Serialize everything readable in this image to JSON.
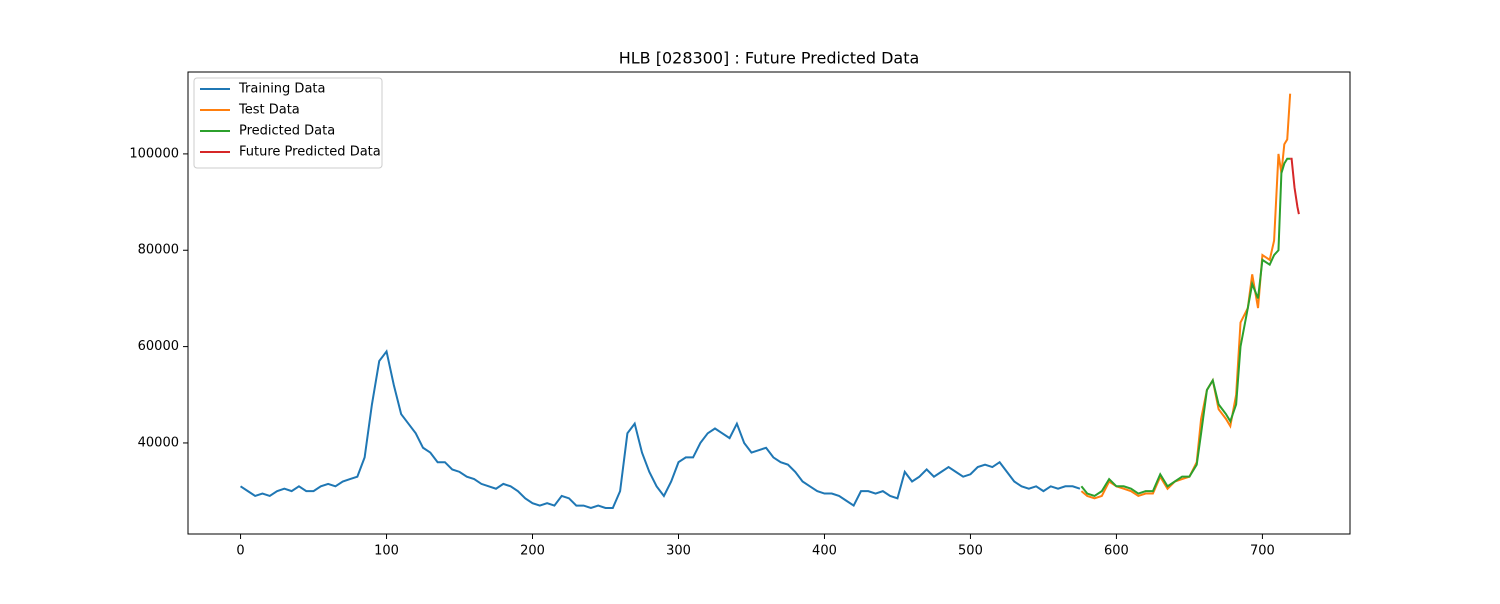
{
  "chart_data": {
    "type": "line",
    "title": "HLB [028300] : Future Predicted Data",
    "xlim": [
      -36,
      760
    ],
    "ylim": [
      21100,
      117000
    ],
    "xticks": [
      0,
      100,
      200,
      300,
      400,
      500,
      600,
      700
    ],
    "yticks": [
      40000,
      60000,
      80000,
      100000
    ],
    "legend": "upper left",
    "series": [
      {
        "name": "Training Data",
        "color": "#1f77b4",
        "x": [
          0,
          5,
          10,
          15,
          20,
          25,
          30,
          35,
          40,
          45,
          50,
          55,
          60,
          65,
          70,
          75,
          80,
          85,
          90,
          95,
          100,
          105,
          110,
          115,
          120,
          125,
          130,
          135,
          140,
          145,
          150,
          155,
          160,
          165,
          170,
          175,
          180,
          185,
          190,
          195,
          200,
          205,
          210,
          215,
          220,
          225,
          230,
          235,
          240,
          245,
          250,
          255,
          260,
          265,
          270,
          275,
          280,
          285,
          290,
          295,
          300,
          305,
          310,
          315,
          320,
          325,
          330,
          335,
          340,
          345,
          350,
          355,
          360,
          365,
          370,
          375,
          380,
          385,
          390,
          395,
          400,
          405,
          410,
          415,
          420,
          425,
          430,
          435,
          440,
          445,
          450,
          455,
          460,
          465,
          470,
          475,
          480,
          485,
          490,
          495,
          500,
          505,
          510,
          515,
          520,
          525,
          530,
          535,
          540,
          545,
          550,
          555,
          560,
          565,
          570,
          575
        ],
        "values": [
          31000,
          30000,
          29000,
          29500,
          29000,
          30000,
          30500,
          30000,
          31000,
          30000,
          30000,
          31000,
          31500,
          31000,
          32000,
          32500,
          33000,
          37000,
          48000,
          57000,
          59000,
          52000,
          46000,
          44000,
          42000,
          39000,
          38000,
          36000,
          36000,
          34500,
          34000,
          33000,
          32500,
          31500,
          31000,
          30500,
          31500,
          31000,
          30000,
          28500,
          27500,
          27000,
          27500,
          27000,
          29000,
          28500,
          27000,
          27000,
          26500,
          27000,
          26500,
          26500,
          30000,
          42000,
          44000,
          38000,
          34000,
          31000,
          29000,
          32000,
          36000,
          37000,
          37000,
          40000,
          42000,
          43000,
          42000,
          41000,
          44000,
          40000,
          38000,
          38500,
          39000,
          37000,
          36000,
          35500,
          34000,
          32000,
          31000,
          30000,
          29500,
          29500,
          29000,
          28000,
          27000,
          30000,
          30000,
          29500,
          30000,
          29000,
          28500,
          34000,
          32000,
          33000,
          34500,
          33000,
          34000,
          35000,
          34000,
          33000,
          33500,
          35000,
          35500,
          35000,
          36000,
          34000,
          32000,
          31000,
          30500,
          31000,
          30000,
          31000,
          30500,
          31000,
          31000,
          30500
        ]
      },
      {
        "name": "Test Data",
        "color": "#ff7f0e",
        "x": [
          576,
          580,
          585,
          590,
          595,
          600,
          605,
          610,
          615,
          620,
          625,
          630,
          635,
          640,
          645,
          650,
          655,
          658,
          662,
          666,
          670,
          675,
          678,
          682,
          685,
          690,
          693,
          697,
          700,
          705,
          708,
          711,
          713,
          715,
          717,
          719
        ],
        "values": [
          30000,
          29000,
          28500,
          29000,
          32000,
          31000,
          30500,
          30000,
          29000,
          29500,
          29500,
          33000,
          30500,
          32000,
          32500,
          33000,
          36000,
          45000,
          51000,
          53000,
          47000,
          45000,
          43500,
          50000,
          65000,
          68000,
          75000,
          68000,
          79000,
          78000,
          82000,
          100000,
          96000,
          102000,
          103000,
          112500
        ]
      },
      {
        "name": "Predicted Data",
        "color": "#2ca02c",
        "x": [
          576,
          580,
          585,
          590,
          595,
          600,
          605,
          610,
          615,
          620,
          625,
          630,
          635,
          640,
          645,
          650,
          655,
          658,
          662,
          666,
          670,
          675,
          678,
          682,
          685,
          690,
          693,
          697,
          700,
          705,
          708,
          711,
          713,
          715,
          717,
          719
        ],
        "values": [
          31000,
          29500,
          29000,
          30000,
          32500,
          31000,
          31000,
          30500,
          29500,
          30000,
          30000,
          33500,
          31000,
          32000,
          33000,
          33000,
          35500,
          42000,
          51000,
          53000,
          48000,
          46000,
          44500,
          48000,
          60000,
          68000,
          73000,
          70000,
          78000,
          77000,
          79000,
          80000,
          96000,
          98000,
          99000,
          99000
        ]
      },
      {
        "name": "Future Predicted Data",
        "color": "#d62728",
        "x": [
          719,
          720,
          722,
          724,
          725
        ],
        "values": [
          99000,
          99000,
          93000,
          89000,
          87500
        ]
      }
    ]
  }
}
